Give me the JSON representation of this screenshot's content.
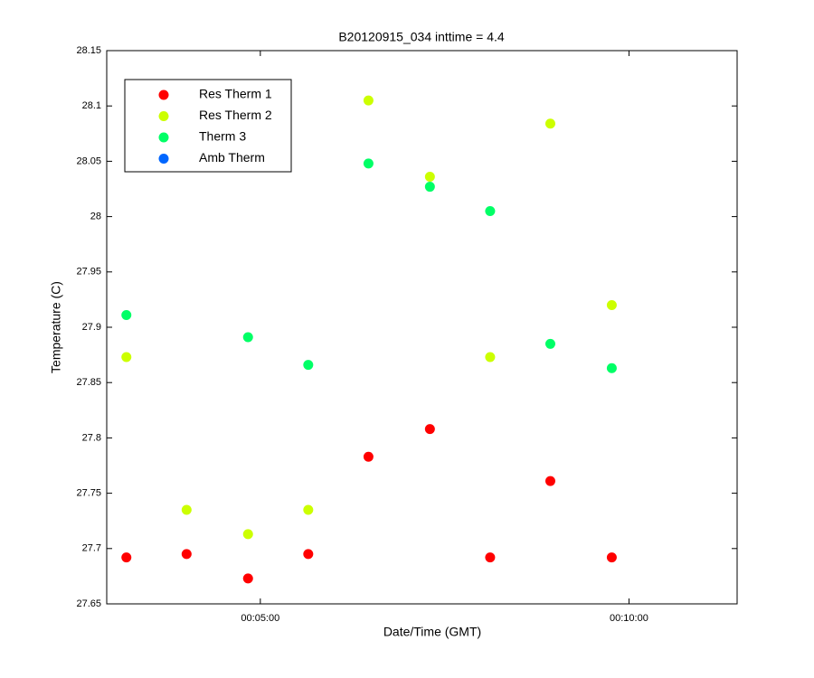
{
  "chart_data": {
    "type": "scatter",
    "title": "B20120915_034 inttime = 4.4",
    "x_label": "Date/Time (GMT)",
    "y_label": "Temperature (C)",
    "x": [
      191,
      240,
      290,
      339,
      388,
      438,
      487,
      536,
      586
    ],
    "series": [
      {
        "name": "Res Therm 1",
        "color": "#ff0000",
        "values": [
          27.692,
          27.695,
          27.673,
          27.695,
          27.783,
          27.808,
          27.692,
          27.761,
          27.692
        ]
      },
      {
        "name": "Res Therm 2",
        "color": "#ccff00",
        "values": [
          27.873,
          27.735,
          27.713,
          27.735,
          28.105,
          28.036,
          27.873,
          28.084,
          27.92
        ]
      },
      {
        "name": "Therm 3",
        "color": "#00ff66",
        "values": [
          27.911,
          null,
          27.891,
          27.866,
          28.048,
          28.027,
          28.005,
          27.885,
          27.863
        ]
      },
      {
        "name": "Amb Therm",
        "color": "#0066ff",
        "values": [
          null,
          null,
          null,
          null,
          null,
          null,
          null,
          null,
          null
        ]
      }
    ],
    "xlim": [
      175,
      688
    ],
    "xticks": [
      {
        "value": 300,
        "label": "00:05:00"
      },
      {
        "value": 600,
        "label": "00:10:00"
      }
    ],
    "ylim": [
      27.65,
      28.15
    ],
    "yticks": [
      27.65,
      27.7,
      27.75,
      27.8,
      27.85,
      27.9,
      27.95,
      28,
      28.05,
      28.1,
      28.15
    ],
    "legend": "north west"
  }
}
